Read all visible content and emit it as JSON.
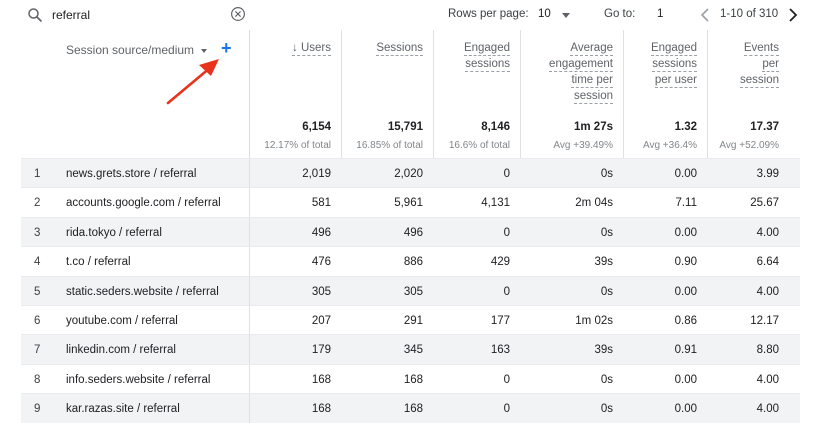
{
  "toolbar": {
    "search_value": "referral",
    "rows_per_page_label": "Rows per page:",
    "rows_per_page_value": "10",
    "goto_label": "Go to:",
    "goto_value": "1",
    "range_text": "1-10 of 310"
  },
  "table": {
    "dimension_header": "Session source/medium",
    "columns": [
      {
        "key": "users",
        "lines": [
          "↓ Users"
        ],
        "total": "6,154",
        "sub": "12.17% of total"
      },
      {
        "key": "sessions",
        "lines": [
          "Sessions"
        ],
        "total": "15,791",
        "sub": "16.85% of total"
      },
      {
        "key": "engaged_sessions",
        "lines": [
          "Engaged",
          "sessions"
        ],
        "total": "8,146",
        "sub": "16.6% of total"
      },
      {
        "key": "avg_engagement_time",
        "lines": [
          "Average",
          "engagement",
          "time per",
          "session"
        ],
        "total": "1m 27s",
        "sub": "Avg +39.49%"
      },
      {
        "key": "engaged_per_user",
        "lines": [
          "Engaged",
          "sessions",
          "per user"
        ],
        "total": "1.32",
        "sub": "Avg +36.4%"
      },
      {
        "key": "events_per_session",
        "lines": [
          "Events",
          "per",
          "session"
        ],
        "total": "17.37",
        "sub": "Avg +52.09%"
      }
    ],
    "rows": [
      {
        "index": "1",
        "source": "news.grets.store / referral",
        "values": [
          "2,019",
          "2,020",
          "0",
          "0s",
          "0.00",
          "3.99"
        ]
      },
      {
        "index": "2",
        "source": "accounts.google.com / referral",
        "values": [
          "581",
          "5,961",
          "4,131",
          "2m 04s",
          "7.11",
          "25.67"
        ]
      },
      {
        "index": "3",
        "source": "rida.tokyo / referral",
        "values": [
          "496",
          "496",
          "0",
          "0s",
          "0.00",
          "4.00"
        ]
      },
      {
        "index": "4",
        "source": "t.co / referral",
        "values": [
          "476",
          "886",
          "429",
          "39s",
          "0.90",
          "6.64"
        ]
      },
      {
        "index": "5",
        "source": "static.seders.website / referral",
        "values": [
          "305",
          "305",
          "0",
          "0s",
          "0.00",
          "4.00"
        ]
      },
      {
        "index": "6",
        "source": "youtube.com / referral",
        "values": [
          "207",
          "291",
          "177",
          "1m 02s",
          "0.86",
          "12.17"
        ]
      },
      {
        "index": "7",
        "source": "linkedin.com / referral",
        "values": [
          "179",
          "345",
          "163",
          "39s",
          "0.91",
          "8.80"
        ]
      },
      {
        "index": "8",
        "source": "info.seders.website / referral",
        "values": [
          "168",
          "168",
          "0",
          "0s",
          "0.00",
          "4.00"
        ]
      },
      {
        "index": "9",
        "source": "kar.razas.site / referral",
        "values": [
          "168",
          "168",
          "0",
          "0s",
          "0.00",
          "4.00"
        ]
      }
    ]
  },
  "colors": {
    "accent": "#1a73e8",
    "annotation_arrow": "#e8331c",
    "row_shade": "#f1f3f4"
  }
}
